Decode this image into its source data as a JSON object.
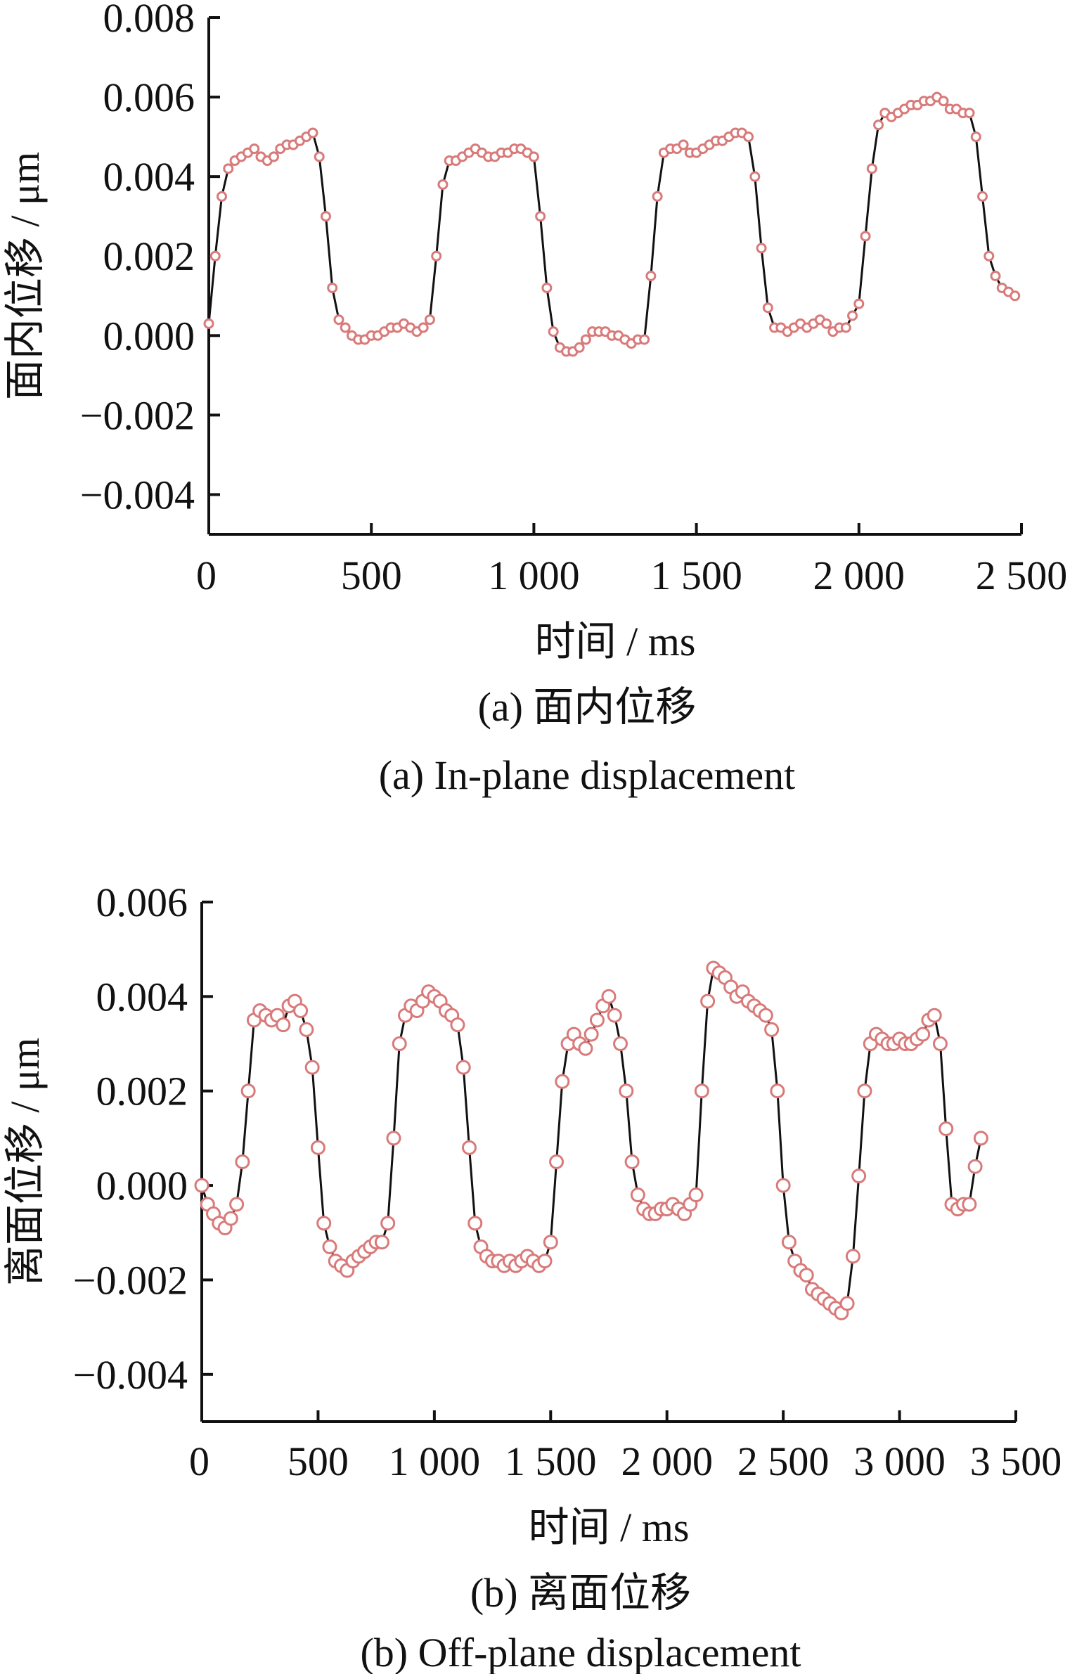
{
  "chart_data": [
    {
      "type": "scatter",
      "title": "",
      "xlabel": "时间 / ms",
      "ylabel": "面内位移 / μm",
      "caption_cn": "(a) 面内位移",
      "caption_en": "(a) In-plane displacement",
      "xlim": [
        0,
        2500
      ],
      "ylim": [
        -0.005,
        0.008
      ],
      "xticks": [
        0,
        500,
        1000,
        1500,
        2000,
        2500
      ],
      "xtick_labels": [
        "0",
        "500",
        "1 000",
        "1 500",
        "2 000",
        "2 500"
      ],
      "yticks": [
        -0.004,
        -0.002,
        0.0,
        0.002,
        0.004,
        0.006,
        0.008
      ],
      "ytick_labels": [
        "−0.004",
        "−0.002",
        "0.000",
        "0.002",
        "0.004",
        "0.006",
        "0.008"
      ],
      "series_color": "#d97a7a",
      "line_color": "#111111",
      "x": [
        0,
        20,
        40,
        60,
        80,
        100,
        120,
        140,
        160,
        180,
        200,
        220,
        240,
        260,
        280,
        300,
        320,
        340,
        360,
        380,
        400,
        420,
        440,
        460,
        480,
        500,
        520,
        540,
        560,
        580,
        600,
        620,
        640,
        660,
        680,
        700,
        720,
        740,
        760,
        780,
        800,
        820,
        840,
        860,
        880,
        900,
        920,
        940,
        960,
        980,
        1000,
        1020,
        1040,
        1060,
        1080,
        1100,
        1120,
        1140,
        1160,
        1180,
        1200,
        1220,
        1240,
        1260,
        1280,
        1300,
        1320,
        1340,
        1360,
        1380,
        1400,
        1420,
        1440,
        1460,
        1480,
        1500,
        1520,
        1540,
        1560,
        1580,
        1600,
        1620,
        1640,
        1660,
        1680,
        1700,
        1720,
        1740,
        1760,
        1780,
        1800,
        1820,
        1840,
        1860,
        1880,
        1900,
        1920,
        1940,
        1960,
        1980,
        2000,
        2020,
        2040,
        2060,
        2080,
        2100,
        2120,
        2140,
        2160,
        2180,
        2200,
        2220,
        2240,
        2260,
        2280,
        2300,
        2320,
        2340,
        2360,
        2380,
        2400,
        2420,
        2440,
        2460,
        2480
      ],
      "y": [
        0.0003,
        0.002,
        0.0035,
        0.0042,
        0.0044,
        0.0045,
        0.0046,
        0.0047,
        0.0045,
        0.0044,
        0.0045,
        0.0047,
        0.0048,
        0.0048,
        0.0049,
        0.005,
        0.0051,
        0.0045,
        0.003,
        0.0012,
        0.0004,
        0.0002,
        0.0,
        -0.0001,
        -0.0001,
        0.0,
        0.0,
        0.0001,
        0.0002,
        0.0002,
        0.0003,
        0.0002,
        0.0001,
        0.0002,
        0.0004,
        0.002,
        0.0038,
        0.0044,
        0.0044,
        0.0045,
        0.0046,
        0.0047,
        0.0046,
        0.0045,
        0.0045,
        0.0046,
        0.0046,
        0.0047,
        0.0047,
        0.0046,
        0.0045,
        0.003,
        0.0012,
        0.0001,
        -0.0003,
        -0.0004,
        -0.0004,
        -0.0003,
        -0.0001,
        0.0001,
        0.0001,
        0.0001,
        0.0,
        0.0,
        -0.0001,
        -0.0002,
        -0.0001,
        -0.0001,
        0.0015,
        0.0035,
        0.0046,
        0.0047,
        0.0047,
        0.0048,
        0.0046,
        0.0046,
        0.0047,
        0.0048,
        0.0049,
        0.0049,
        0.005,
        0.0051,
        0.0051,
        0.005,
        0.004,
        0.0022,
        0.0007,
        0.0002,
        0.0002,
        0.0001,
        0.0002,
        0.0003,
        0.0002,
        0.0003,
        0.0004,
        0.0003,
        0.0001,
        0.0002,
        0.0002,
        0.0005,
        0.0008,
        0.0025,
        0.0042,
        0.0053,
        0.0056,
        0.0055,
        0.0056,
        0.0057,
        0.0058,
        0.0058,
        0.0059,
        0.0059,
        0.006,
        0.0059,
        0.0057,
        0.0057,
        0.0056,
        0.0056,
        0.005,
        0.0035,
        0.002,
        0.0015,
        0.0012,
        0.0011,
        0.001
      ]
    },
    {
      "type": "scatter",
      "title": "",
      "xlabel": "时间 / ms",
      "ylabel": "离面位移 / μm",
      "caption_cn": "(b) 离面位移",
      "caption_en": "(b) Off-plane displacement",
      "xlim": [
        0,
        3500
      ],
      "ylim": [
        -0.005,
        0.006
      ],
      "xticks": [
        0,
        500,
        1000,
        1500,
        2000,
        2500,
        3000,
        3500
      ],
      "xtick_labels": [
        "0",
        "500",
        "1 000",
        "1 500",
        "2 000",
        "2 500",
        "3 000",
        "3 500"
      ],
      "yticks": [
        -0.004,
        -0.002,
        0.0,
        0.002,
        0.004,
        0.006
      ],
      "ytick_labels": [
        "−0.004",
        "−0.002",
        "0.000",
        "0.002",
        "0.004",
        "0.006"
      ],
      "series_color": "#d97a7a",
      "line_color": "#111111",
      "x": [
        0,
        25,
        50,
        75,
        100,
        125,
        150,
        175,
        200,
        225,
        250,
        275,
        300,
        325,
        350,
        375,
        400,
        425,
        450,
        475,
        500,
        525,
        550,
        575,
        600,
        625,
        650,
        675,
        700,
        725,
        750,
        775,
        800,
        825,
        850,
        875,
        900,
        925,
        950,
        975,
        1000,
        1025,
        1050,
        1075,
        1100,
        1125,
        1150,
        1175,
        1200,
        1225,
        1250,
        1275,
        1300,
        1325,
        1350,
        1375,
        1400,
        1425,
        1450,
        1475,
        1500,
        1525,
        1550,
        1575,
        1600,
        1625,
        1650,
        1675,
        1700,
        1725,
        1750,
        1775,
        1800,
        1825,
        1850,
        1875,
        1900,
        1925,
        1950,
        1975,
        2000,
        2025,
        2050,
        2075,
        2100,
        2125,
        2150,
        2175,
        2200,
        2225,
        2250,
        2275,
        2300,
        2325,
        2350,
        2375,
        2400,
        2425,
        2450,
        2475,
        2500,
        2525,
        2550,
        2575,
        2600,
        2625,
        2650,
        2675,
        2700,
        2725,
        2750,
        2775,
        2800,
        2825,
        2850,
        2875,
        2900,
        2925,
        2950,
        2975,
        3000,
        3025,
        3050,
        3075,
        3100,
        3125,
        3150,
        3175,
        3200,
        3225,
        3250,
        3275,
        3300,
        3325,
        3350
      ],
      "y": [
        0.0,
        -0.0004,
        -0.0006,
        -0.0008,
        -0.0009,
        -0.0007,
        -0.0004,
        0.0005,
        0.002,
        0.0035,
        0.0037,
        0.0036,
        0.0035,
        0.0036,
        0.0034,
        0.0038,
        0.0039,
        0.0037,
        0.0033,
        0.0025,
        0.0008,
        -0.0008,
        -0.0013,
        -0.0016,
        -0.0017,
        -0.0018,
        -0.0016,
        -0.0015,
        -0.0014,
        -0.0013,
        -0.0012,
        -0.0012,
        -0.0008,
        0.001,
        0.003,
        0.0036,
        0.0038,
        0.0037,
        0.0039,
        0.0041,
        0.004,
        0.0039,
        0.0037,
        0.0036,
        0.0034,
        0.0025,
        0.0008,
        -0.0008,
        -0.0013,
        -0.0015,
        -0.0016,
        -0.0016,
        -0.0017,
        -0.0016,
        -0.0017,
        -0.0016,
        -0.0015,
        -0.0016,
        -0.0017,
        -0.0016,
        -0.0012,
        0.0005,
        0.0022,
        0.003,
        0.0032,
        0.003,
        0.0029,
        0.0032,
        0.0035,
        0.0038,
        0.004,
        0.0036,
        0.003,
        0.002,
        0.0005,
        -0.0002,
        -0.0005,
        -0.0006,
        -0.0006,
        -0.0005,
        -0.0005,
        -0.0004,
        -0.0005,
        -0.0006,
        -0.0004,
        -0.0002,
        0.002,
        0.0039,
        0.0046,
        0.0045,
        0.0044,
        0.0042,
        0.004,
        0.0041,
        0.0039,
        0.0038,
        0.0037,
        0.0036,
        0.0033,
        0.002,
        0.0,
        -0.0012,
        -0.0016,
        -0.0018,
        -0.0019,
        -0.0022,
        -0.0023,
        -0.0024,
        -0.0025,
        -0.0026,
        -0.0027,
        -0.0025,
        -0.0015,
        0.0002,
        0.002,
        0.003,
        0.0032,
        0.0031,
        0.003,
        0.003,
        0.0031,
        0.003,
        0.003,
        0.0031,
        0.0032,
        0.0035,
        0.0036,
        0.003,
        0.0012,
        -0.0004,
        -0.0005,
        -0.0004,
        -0.0004,
        0.0004,
        0.001
      ]
    }
  ]
}
